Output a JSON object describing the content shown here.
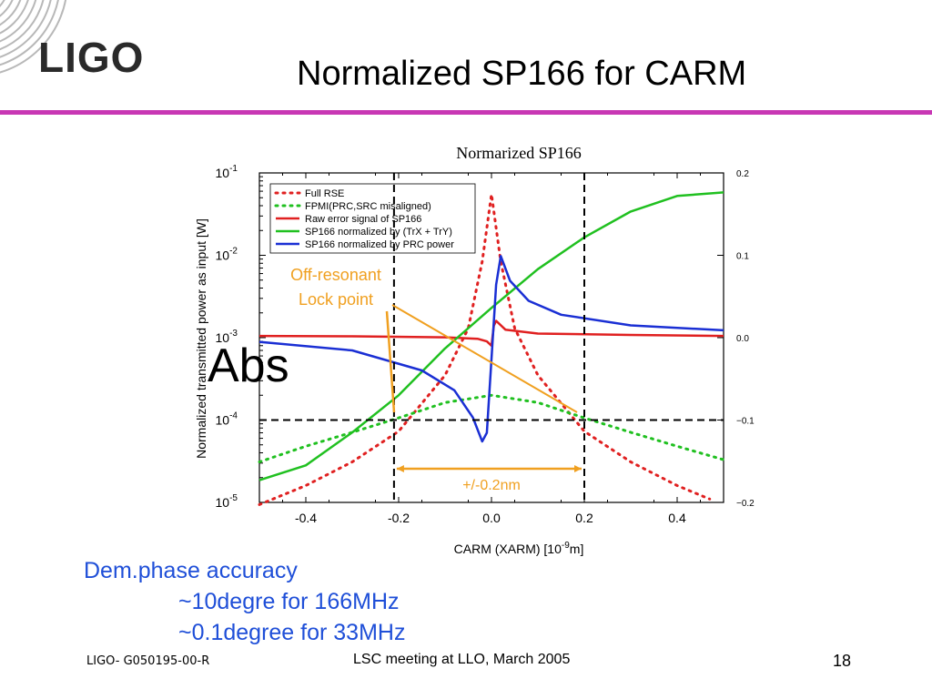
{
  "header": {
    "logo_text": "LIGO",
    "title": "Normalized SP166 for CARM",
    "rule_color": "#c837b4"
  },
  "chart_data": {
    "type": "line",
    "title": "Normarized SP166",
    "xlabel": "CARM (XARM) [10",
    "xlabel_exp": "-9",
    "xlabel_unit": "m]",
    "ylabel": "Normalized transmitted power as input [W]",
    "xlim": [
      -0.5,
      0.5
    ],
    "y_log_range": [
      -5,
      -1
    ],
    "x_ticks": [
      "-0.4",
      "-0.2",
      "0.0",
      "0.2",
      "0.4"
    ],
    "y_ticks": [
      {
        "base": "10",
        "exp": "-1"
      },
      {
        "base": "10",
        "exp": "-2"
      },
      {
        "base": "10",
        "exp": "-3"
      },
      {
        "base": "10",
        "exp": "-4"
      },
      {
        "base": "10",
        "exp": "-5"
      }
    ],
    "y2_ticks": [
      "0.2",
      "0.1",
      "0.0",
      "−0.1",
      "−0.2"
    ],
    "y2lim": [
      -0.2,
      0.2
    ],
    "grid": false,
    "legend_position": "top-left",
    "series": [
      {
        "name": "Full RSE",
        "color": "#e02020",
        "style": "dotted",
        "x": [
          -0.5,
          -0.4,
          -0.3,
          -0.2,
          -0.1,
          -0.05,
          -0.02,
          0.0,
          0.02,
          0.05,
          0.1,
          0.2,
          0.3,
          0.4,
          0.47
        ],
        "y": [
          9.4e-06,
          1.6e-05,
          3.1e-05,
          7.3e-05,
          0.00035,
          0.0013,
          0.0084,
          0.055,
          0.0084,
          0.0013,
          0.00035,
          7.3e-05,
          3.1e-05,
          1.6e-05,
          1.1e-05
        ]
      },
      {
        "name": "FPMI(PRC,SRC misaligned)",
        "color": "#20c020",
        "style": "dotted",
        "x": [
          -0.5,
          -0.4,
          -0.3,
          -0.2,
          -0.1,
          0.0,
          0.1,
          0.2,
          0.3,
          0.4,
          0.5
        ],
        "y": [
          3.1e-05,
          4.8e-05,
          7.1e-05,
          0.000106,
          0.000163,
          0.0002,
          0.000163,
          0.000106,
          7.1e-05,
          4.8e-05,
          3.3e-05
        ]
      },
      {
        "name": "Raw error signal of SP166",
        "color": "#e02020",
        "style": "solid",
        "x": [
          -0.5,
          -0.3,
          -0.1,
          -0.03,
          -0.01,
          0.0,
          0.005,
          0.01,
          0.03,
          0.1,
          0.3,
          0.5
        ],
        "y": [
          0.00105,
          0.00104,
          0.00101,
          0.00097,
          0.0009,
          0.0008,
          0.0014,
          0.0016,
          0.00125,
          0.00112,
          0.00108,
          0.00105
        ]
      },
      {
        "name": "SP166 normalized by (TrX + TrY)",
        "color": "#20c020",
        "style": "solid",
        "x": [
          -0.5,
          -0.4,
          -0.3,
          -0.2,
          -0.1,
          0.0,
          0.1,
          0.2,
          0.3,
          0.4,
          0.5
        ],
        "y": [
          1.86e-05,
          2.82e-05,
          7.08e-05,
          0.0002,
          0.00074,
          0.0023,
          0.0068,
          0.0165,
          0.034,
          0.0525,
          0.058
        ]
      },
      {
        "name": "SP166 normalized by PRC power",
        "color": "#1a2fd4",
        "style": "solid",
        "x": [
          -0.5,
          -0.3,
          -0.15,
          -0.08,
          -0.04,
          -0.02,
          -0.01,
          0.0,
          0.01,
          0.02,
          0.04,
          0.08,
          0.15,
          0.3,
          0.5
        ],
        "y": [
          0.00089,
          0.0007,
          0.0004,
          0.00023,
          0.000107,
          5.5e-05,
          7e-05,
          0.00055,
          0.0044,
          0.0098,
          0.0049,
          0.0028,
          0.0019,
          0.00141,
          0.00123
        ]
      }
    ],
    "annotations": {
      "off_resonant_line1": "Off-resonant",
      "off_resonant_line2": "Lock point",
      "range_label": "+/-0.2nm",
      "vlines_x": [
        -0.21,
        0.2
      ],
      "hline_y": 0.0001,
      "color": "#f0a020"
    }
  },
  "abs_label": "Abs",
  "notes": {
    "line1": "Dem.phase accuracy",
    "line2": "~10degre for 166MHz",
    "line3": "~0.1degree for 33MHz"
  },
  "footer": {
    "left": "LIGO- G050195-00-R",
    "center": "LSC meeting at LLO, March 2005",
    "right": "18"
  }
}
